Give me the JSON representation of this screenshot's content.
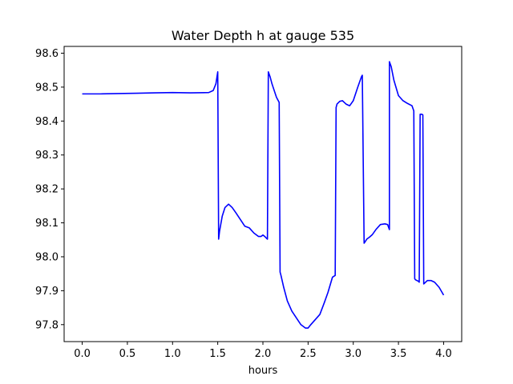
{
  "chart_data": {
    "type": "line",
    "title": "Water Depth h at gauge 535",
    "xlabel": "hours",
    "ylabel": "",
    "xlim": [
      -0.2,
      4.2
    ],
    "ylim": [
      97.75,
      98.62
    ],
    "xticks": [
      0.0,
      0.5,
      1.0,
      1.5,
      2.0,
      2.5,
      3.0,
      3.5,
      4.0
    ],
    "xtick_labels": [
      "0.0",
      "0.5",
      "1.0",
      "1.5",
      "2.0",
      "2.5",
      "3.0",
      "3.5",
      "4.0"
    ],
    "yticks": [
      97.8,
      97.9,
      98.0,
      98.1,
      98.2,
      98.3,
      98.4,
      98.5,
      98.6
    ],
    "ytick_labels": [
      "97.8",
      "97.9",
      "98.0",
      "98.1",
      "98.2",
      "98.3",
      "98.4",
      "98.5",
      "98.6"
    ],
    "grid": false,
    "legend": "none",
    "series": [
      {
        "color": "#0000ff",
        "x": [
          0.0,
          0.2,
          0.4,
          0.6,
          0.8,
          1.0,
          1.2,
          1.4,
          1.45,
          1.48,
          1.5,
          1.51,
          1.52,
          1.55,
          1.58,
          1.62,
          1.66,
          1.7,
          1.75,
          1.8,
          1.85,
          1.9,
          1.95,
          1.98,
          2.0,
          2.02,
          2.05,
          2.06,
          2.08,
          2.1,
          2.15,
          2.18,
          2.19,
          2.2,
          2.23,
          2.27,
          2.32,
          2.37,
          2.42,
          2.47,
          2.5,
          2.53,
          2.58,
          2.63,
          2.68,
          2.72,
          2.77,
          2.8,
          2.81,
          2.82,
          2.85,
          2.88,
          2.92,
          2.96,
          3.0,
          3.05,
          3.09,
          3.1,
          3.12,
          3.15,
          3.18,
          3.21,
          3.25,
          3.3,
          3.35,
          3.38,
          3.4,
          3.4,
          3.42,
          3.45,
          3.5,
          3.55,
          3.6,
          3.65,
          3.67,
          3.68,
          3.69,
          3.72,
          3.73,
          3.74,
          3.76,
          3.77,
          3.78,
          3.82,
          3.86,
          3.9,
          3.95,
          4.0
        ],
        "y": [
          98.48,
          98.48,
          98.481,
          98.482,
          98.483,
          98.484,
          98.483,
          98.484,
          98.49,
          98.51,
          98.545,
          98.052,
          98.075,
          98.12,
          98.145,
          98.155,
          98.145,
          98.13,
          98.11,
          98.09,
          98.085,
          98.07,
          98.06,
          98.06,
          98.064,
          98.06,
          98.052,
          98.545,
          98.53,
          98.51,
          98.47,
          98.455,
          97.955,
          97.945,
          97.91,
          97.87,
          97.84,
          97.82,
          97.8,
          97.79,
          97.79,
          97.8,
          97.815,
          97.83,
          97.865,
          97.895,
          97.94,
          97.945,
          98.44,
          98.45,
          98.458,
          98.46,
          98.45,
          98.445,
          98.46,
          98.5,
          98.53,
          98.535,
          98.04,
          98.052,
          98.058,
          98.065,
          98.08,
          98.095,
          98.097,
          98.095,
          98.08,
          98.575,
          98.56,
          98.52,
          98.475,
          98.46,
          98.452,
          98.445,
          98.43,
          97.935,
          97.932,
          97.928,
          97.925,
          98.42,
          98.42,
          98.418,
          97.92,
          97.93,
          97.93,
          97.925,
          97.91,
          97.887
        ]
      }
    ]
  }
}
